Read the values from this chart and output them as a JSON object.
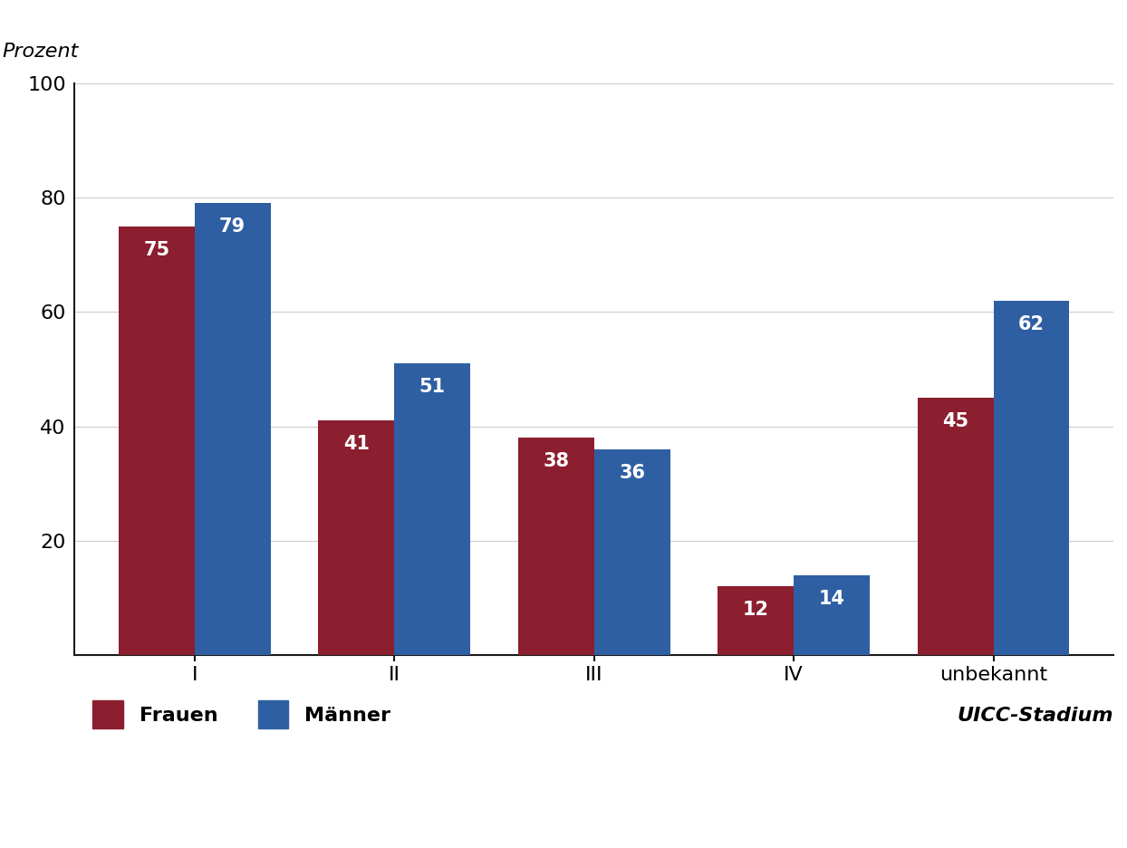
{
  "categories": [
    "I",
    "II",
    "III",
    "IV",
    "unbekannt"
  ],
  "frauen_values": [
    75,
    41,
    38,
    12,
    45
  ],
  "maenner_values": [
    79,
    51,
    36,
    14,
    62
  ],
  "frauen_color": "#8B1E2F",
  "maenner_color": "#2E5FA3",
  "ylabel": "Prozent",
  "xlabel": "UICC-Stadium",
  "ylim": [
    0,
    100
  ],
  "yticks": [
    20,
    40,
    60,
    80,
    100
  ],
  "bar_width": 0.38,
  "legend_frauen": "Frauen",
  "legend_maenner": "Männer",
  "label_fontsize": 16,
  "tick_fontsize": 16,
  "ylabel_fontsize": 16,
  "xlabel_fontsize": 16,
  "value_fontsize": 15,
  "background_color": "#ffffff",
  "grid_color": "#cccccc"
}
